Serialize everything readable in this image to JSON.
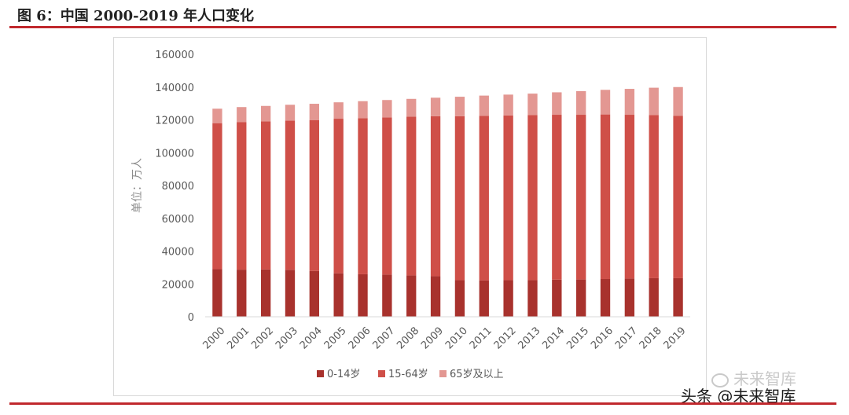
{
  "figure": {
    "title": "图 6：中国 2000-2019 年人口变化"
  },
  "watermark": {
    "top": "未来智库",
    "bottom": "头条 @未来智库"
  },
  "chart_data": {
    "type": "bar",
    "stacked": true,
    "title": "",
    "ylabel": "单位：万人",
    "xlabel": "",
    "ylim": [
      0,
      160000
    ],
    "yticks": [
      0,
      20000,
      40000,
      60000,
      80000,
      100000,
      120000,
      140000,
      160000
    ],
    "grid": false,
    "legend_position": "bottom",
    "categories": [
      "2000",
      "2001",
      "2002",
      "2003",
      "2004",
      "2005",
      "2006",
      "2007",
      "2008",
      "2009",
      "2010",
      "2011",
      "2012",
      "2013",
      "2014",
      "2015",
      "2016",
      "2017",
      "2018",
      "2019"
    ],
    "series": [
      {
        "name": "0-14岁",
        "color": "#a8322d",
        "values": [
          29000,
          28700,
          28800,
          28600,
          27900,
          26500,
          25900,
          25700,
          25200,
          24700,
          22300,
          22200,
          22300,
          22300,
          22600,
          22700,
          23000,
          23300,
          23500,
          23500
        ]
      },
      {
        "name": "15-64岁",
        "color": "#cf4f48",
        "values": [
          89000,
          90000,
          90300,
          90900,
          92000,
          94200,
          95100,
          95800,
          96700,
          97500,
          99900,
          100300,
          100400,
          100600,
          100500,
          100400,
          100300,
          99800,
          99400,
          98900
        ]
      },
      {
        "name": "65岁及以上",
        "color": "#e39792",
        "values": [
          8800,
          9100,
          9400,
          9700,
          9900,
          10000,
          10400,
          10600,
          10900,
          11300,
          11900,
          12300,
          12700,
          13100,
          13700,
          14400,
          15000,
          15800,
          16700,
          17600
        ]
      }
    ]
  }
}
